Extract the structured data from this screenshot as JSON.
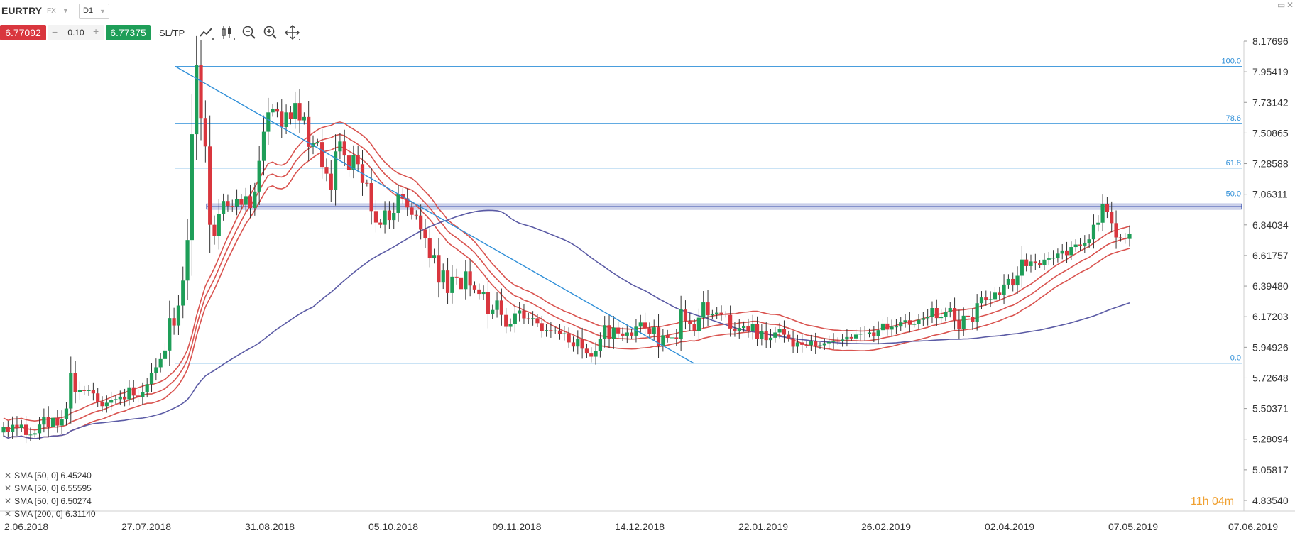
{
  "header": {
    "symbol": "EURTRY",
    "market": "FX",
    "timeframe": "D1"
  },
  "trade": {
    "sell_price": "6.77092",
    "quantity": "0.10",
    "buy_price": "6.77375",
    "sltp_label": "SL/TP",
    "minus": "−",
    "plus": "+"
  },
  "legend": [
    {
      "text": "SMA [50, 0] 6.45240"
    },
    {
      "text": "SMA [50, 0] 6.55595"
    },
    {
      "text": "SMA [50, 0] 6.50274"
    },
    {
      "text": "SMA [200, 0] 6.31140"
    }
  ],
  "timer": {
    "hours": "11",
    "h": "h",
    "minutes": "04",
    "m": "m"
  },
  "icons": [
    "line-chart-icon",
    "candle-chart-icon",
    "zoom-out-icon",
    "zoom-in-icon",
    "move-icon",
    "window-icon",
    "close-icon"
  ],
  "colors": {
    "bull": "#1e9e58",
    "bear": "#d9363e",
    "sma_red": "#d9534f",
    "sma_200": "#5b5ba5",
    "fib": "#2f8fd8",
    "zone": "#3a4fae"
  },
  "chart_data": {
    "type": "candlestick",
    "y_ticks": [
      "8.17696",
      "7.95419",
      "7.73142",
      "7.50865",
      "7.28588",
      "7.06311",
      "6.84034",
      "6.61757",
      "6.39480",
      "6.17203",
      "5.94926",
      "5.72648",
      "5.50371",
      "5.28094",
      "5.05817",
      "4.83540"
    ],
    "ylim": [
      4.8354,
      8.17696
    ],
    "x_ticks": [
      "2.06.2018",
      "27.07.2018",
      "31.08.2018",
      "05.10.2018",
      "09.11.2018",
      "14.12.2018",
      "22.01.2019",
      "26.02.2019",
      "02.04.2019",
      "07.05.2019",
      "07.06.2019"
    ],
    "fib_levels": [
      {
        "label": "100.0",
        "value": 7.9932
      },
      {
        "label": "78.6",
        "value": 7.5767
      },
      {
        "label": "61.8",
        "value": 7.2537
      },
      {
        "label": "50.0",
        "value": 7.028
      },
      {
        "label": "0.0",
        "value": 5.8335
      }
    ],
    "resistance_zone": [
      6.955,
      6.992
    ],
    "trendline": {
      "start": [
        "27.07.2018",
        7.9932
      ],
      "end": [
        "27.12.2018",
        5.8335
      ]
    },
    "candles_close": [
      5.37,
      5.336,
      5.385,
      5.362,
      5.386,
      5.311,
      5.314,
      5.324,
      5.387,
      5.441,
      5.372,
      5.436,
      5.38,
      5.425,
      5.504,
      5.76,
      5.624,
      5.639,
      5.631,
      5.636,
      5.614,
      5.551,
      5.521,
      5.546,
      5.564,
      5.572,
      5.59,
      5.571,
      5.658,
      5.598,
      5.589,
      5.625,
      5.681,
      5.765,
      5.804,
      5.864,
      5.926,
      6.162,
      6.108,
      6.253,
      6.435,
      6.73,
      7.5,
      8.005,
      7.618,
      7.411,
      6.841,
      6.757,
      6.919,
      7.014,
      6.978,
      6.976,
      7.026,
      6.986,
      7.049,
      6.963,
      7.083,
      7.306,
      7.518,
      7.659,
      7.686,
      7.664,
      7.552,
      7.659,
      7.614,
      7.727,
      7.601,
      7.625,
      7.408,
      7.433,
      7.443,
      7.262,
      7.213,
      7.093,
      7.375,
      7.447,
      7.345,
      7.242,
      7.349,
      7.282,
      7.145,
      7.144,
      6.941,
      6.857,
      6.841,
      6.945,
      6.875,
      6.927,
      7.062,
      7.033,
      6.967,
      6.913,
      6.908,
      6.806,
      6.741,
      6.6,
      6.621,
      6.42,
      6.508,
      6.344,
      6.463,
      6.458,
      6.373,
      6.502,
      6.399,
      6.37,
      6.338,
      6.351,
      6.189,
      6.221,
      6.29,
      6.185,
      6.098,
      6.12,
      6.196,
      6.217,
      6.16,
      6.154,
      6.161,
      6.125,
      6.067,
      6.074,
      6.07,
      6.071,
      6.046,
      6.051,
      5.985,
      5.955,
      6.01,
      5.939,
      5.904,
      5.881,
      5.921,
      6.008,
      6.11,
      6.012,
      6.093,
      6.05,
      6.034,
      6.057,
      6.034,
      6.099,
      6.13,
      6.089,
      6.046,
      6.095,
      5.96,
      6.037,
      6.018,
      6.021,
      6.012,
      6.224,
      6.14,
      6.118,
      6.067,
      6.165,
      6.276,
      6.183,
      6.192,
      6.201,
      6.191,
      6.186,
      6.086,
      6.07,
      6.09,
      6.106,
      6.066,
      6.117,
      6.011,
      6.068,
      6.002,
      6.019,
      6.057,
      6.081,
      6.041,
      6.015,
      5.954,
      5.985,
      5.967,
      5.965,
      5.992,
      5.956,
      5.964,
      5.979,
      5.988,
      5.995,
      5.992,
      6.006,
      6.024,
      6.014,
      6.042,
      6.049,
      6.048,
      6.057,
      6.03,
      6.074,
      6.122,
      6.078,
      6.099,
      6.1,
      6.131,
      6.146,
      6.113,
      6.118,
      6.149,
      6.161,
      6.17,
      6.235,
      6.162,
      6.17,
      6.205,
      6.235,
      6.145,
      6.083,
      6.179,
      6.171,
      6.133,
      6.27,
      6.312,
      6.296,
      6.3,
      6.347,
      6.332,
      6.406,
      6.447,
      6.4,
      6.47,
      6.588,
      6.54,
      6.574,
      6.56,
      6.55,
      6.587,
      6.596,
      6.6,
      6.631,
      6.654,
      6.62,
      6.679,
      6.697,
      6.69,
      6.705,
      6.735,
      6.841,
      6.856,
      6.993,
      6.937,
      6.853,
      6.749,
      6.743,
      6.738,
      6.774
    ]
  }
}
